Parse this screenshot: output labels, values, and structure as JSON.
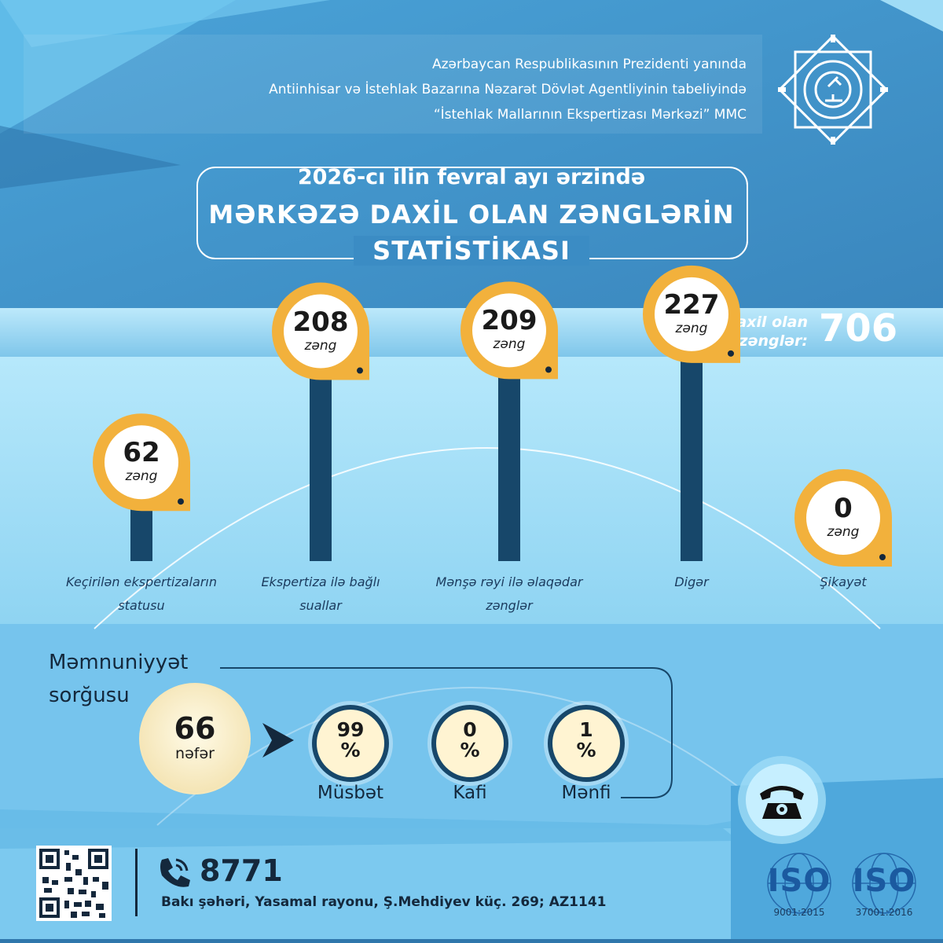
{
  "header": {
    "lines": [
      "Azərbaycan Respublikasının Prezidenti yanında",
      "Antiinhisar və İstehlak Bazarına Nəzarət Dövlət Agentliyinin tabeliyində",
      "“İstehlak Mallarının Ekspertizası Mərkəzi” MMC"
    ],
    "logo_icon": "microscope-star-emblem-icon"
  },
  "title": {
    "line1": "2026-cı ilin fevral ayı ərzində",
    "line2": "MƏRKƏZƏ DAXİL OLAN ZƏNGLƏRİN",
    "line3": "STATİSTİKASI"
  },
  "total": {
    "label_line1": "daxil olan",
    "label_line2": "zənglər:",
    "value": "706"
  },
  "chart_data": {
    "type": "bar",
    "categories": [
      "Keçirilən ekspertizaların statusu",
      "Ekspertiza ilə bağlı suallar",
      "Mənşə rəyi ilə əlaqədar zənglər",
      "Digər",
      "Şikayət"
    ],
    "category_lines": [
      [
        "Keçirilən ekspertizaların",
        "statusu"
      ],
      [
        "Ekspertiza ilə bağlı",
        "suallar"
      ],
      [
        "Mənşə rəyi ilə əlaqədar",
        "zənglər"
      ],
      [
        "Digər"
      ],
      [
        "Şikayət"
      ]
    ],
    "values": [
      62,
      208,
      209,
      227,
      0
    ],
    "value_unit": "zəng",
    "colors": {
      "bar": "#17476a",
      "bubble_ring": "#f2b13c",
      "bubble_fill": "#ffffff"
    }
  },
  "survey": {
    "title_line1": "Məmnuniyyət",
    "title_line2": "sorğusu",
    "count": "66",
    "count_unit": "nəfər",
    "arrow_icon": "arrow-right-icon",
    "results": [
      {
        "value": "99",
        "unit": "%",
        "label": "Müsbət"
      },
      {
        "value": "0",
        "unit": "%",
        "label": "Kafi"
      },
      {
        "value": "1",
        "unit": "%",
        "label": "Mənfi"
      }
    ]
  },
  "footer": {
    "qr_icon": "qr-code-icon",
    "phone_icon": "phone-call-icon",
    "phone": "8771",
    "address": "Bakı şəhəri, Yasamal rayonu, Ş.Mehdiyev küç. 269; AZ1141",
    "telephone_icon": "telephone-icon",
    "iso": [
      {
        "word": "ISO",
        "code": "9001:2015"
      },
      {
        "word": "ISO",
        "code": "37001:2016"
      }
    ]
  },
  "colors": {
    "primary_blue": "#3b8cc4",
    "light_blue": "#9fdcf6",
    "dark_navy": "#17476a",
    "gold": "#f2b13c",
    "cream": "#fff4d2"
  }
}
